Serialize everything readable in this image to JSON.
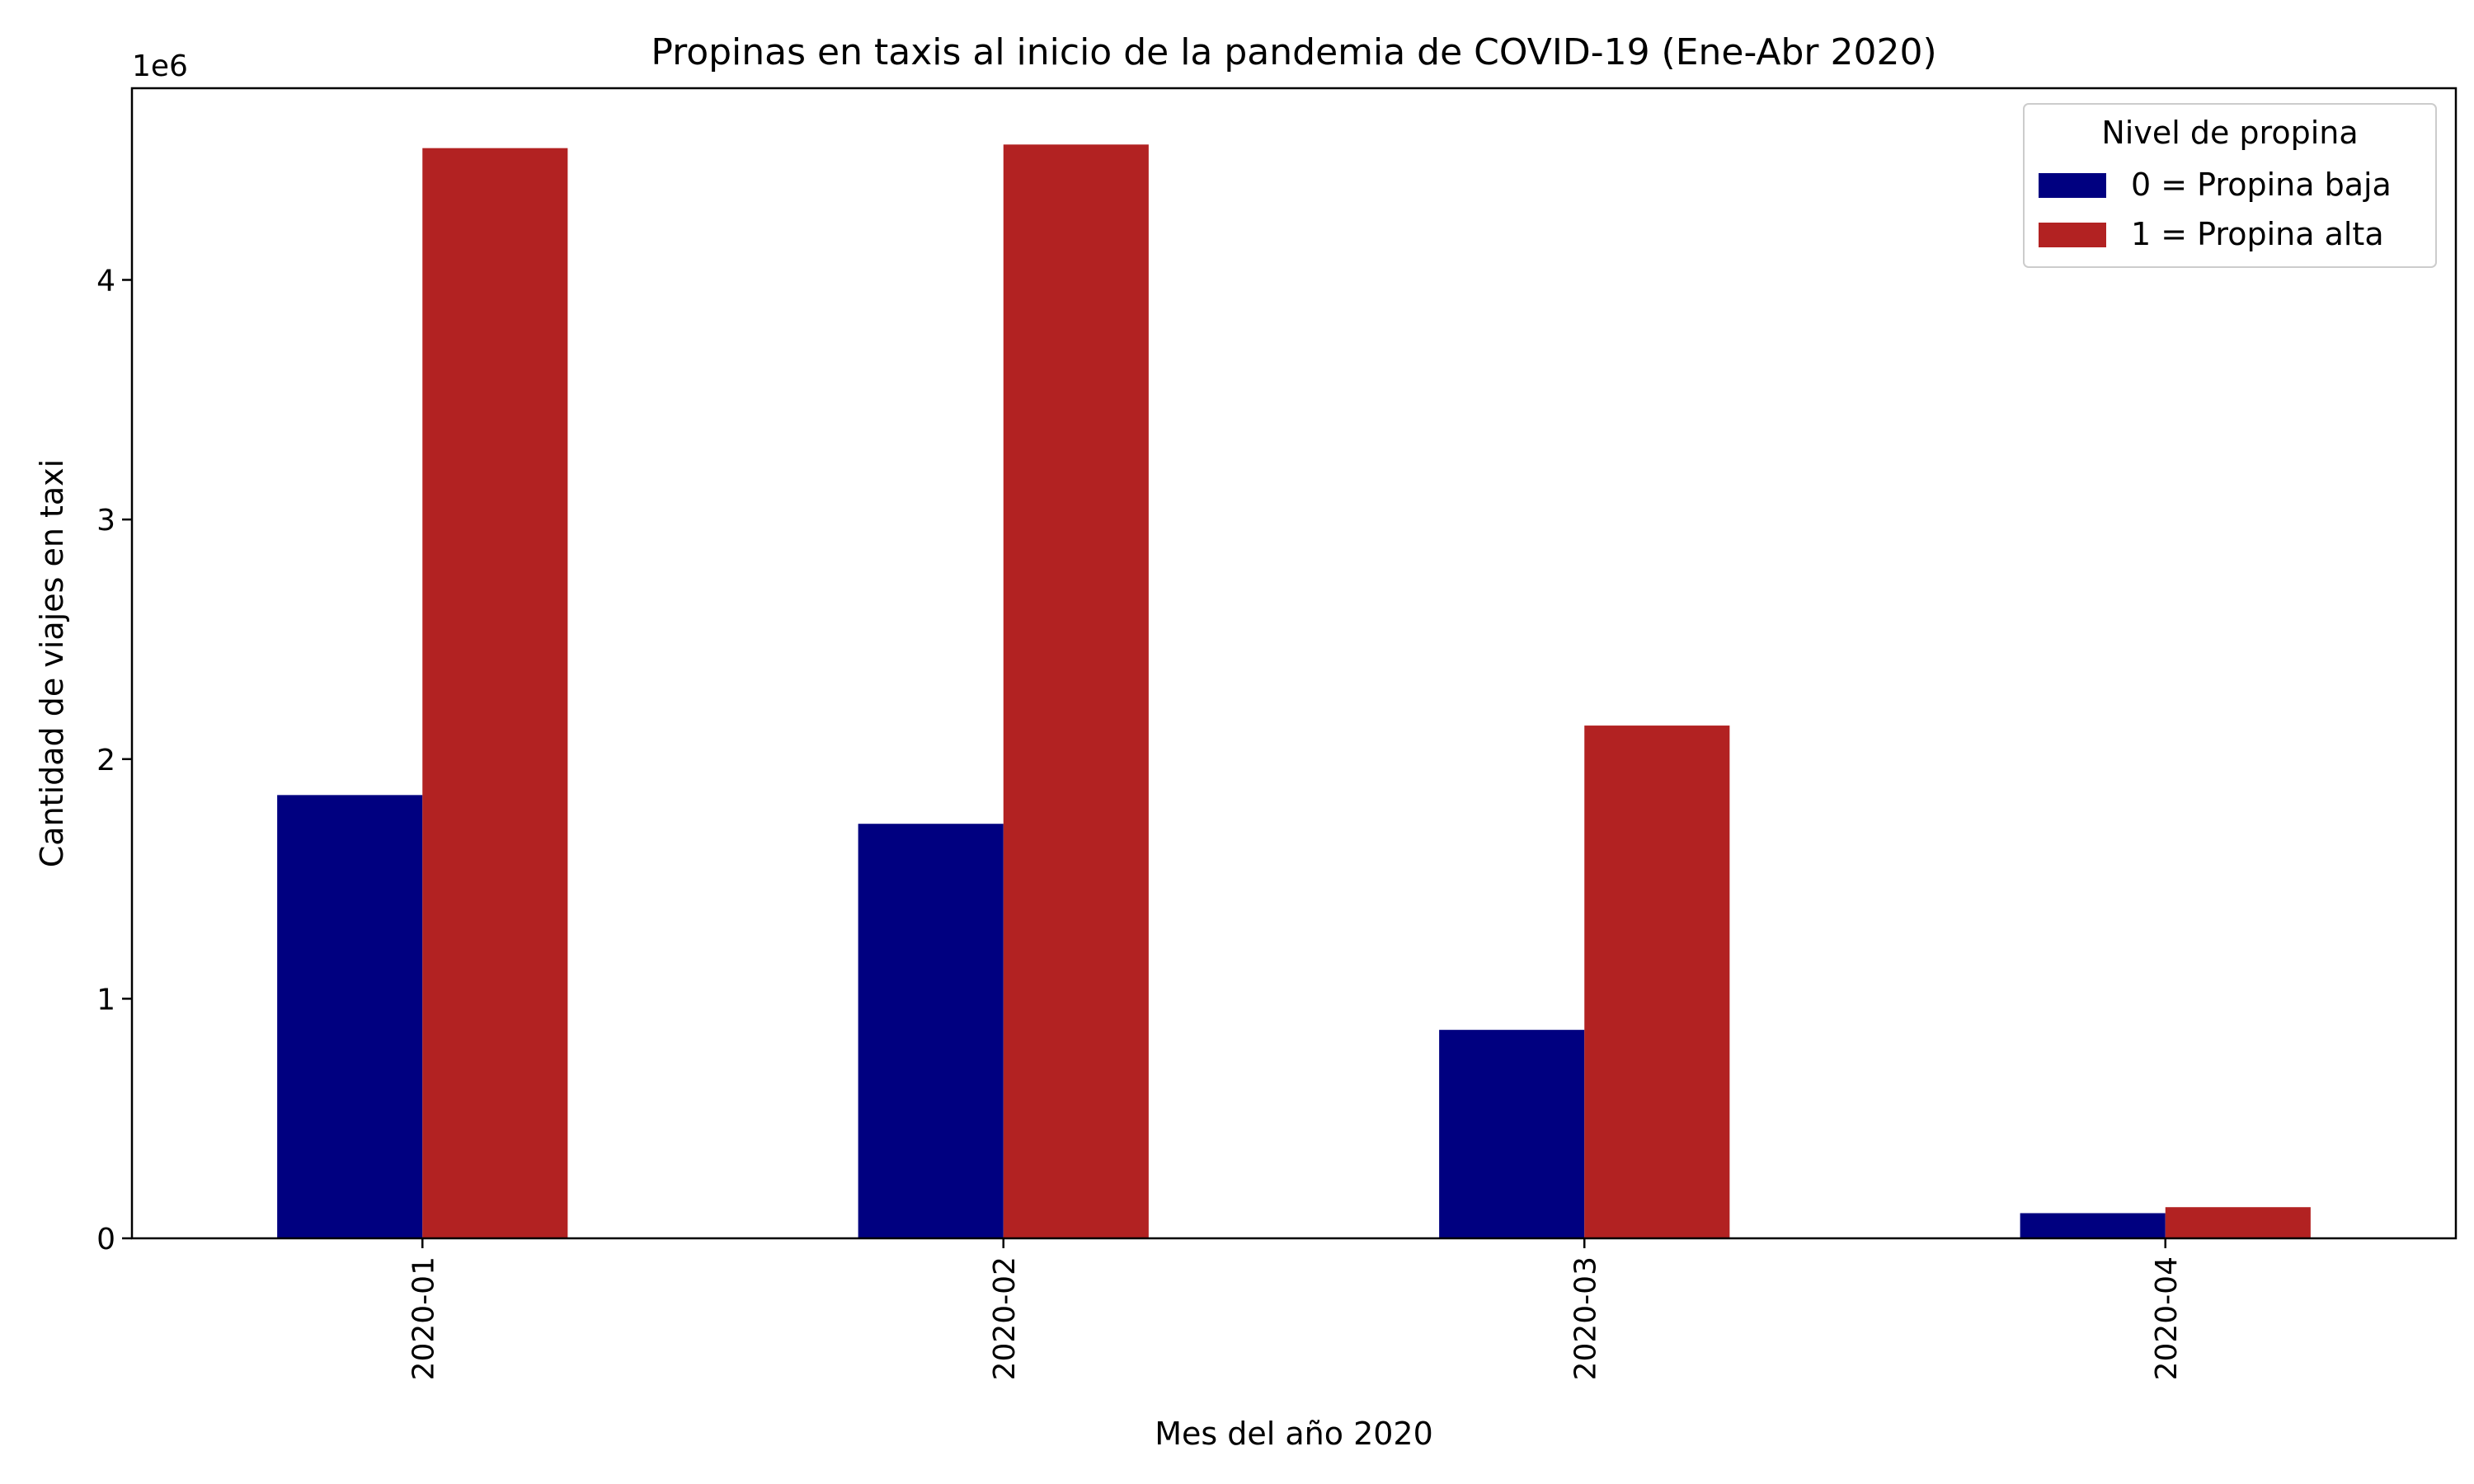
{
  "chart_data": {
    "type": "bar",
    "title": "Propinas en taxis al inicio de la pandemia de COVID-19 (Ene-Abr 2020)",
    "xlabel": "Mes del año 2020",
    "ylabel": "Cantidad de viajes en taxi",
    "y_offset_label": "1e6",
    "categories": [
      "2020-01",
      "2020-02",
      "2020-03",
      "2020-04"
    ],
    "series": [
      {
        "name": "0 = Propina baja",
        "color": "#000080",
        "values": [
          1850000,
          1730000,
          870000,
          105000
        ]
      },
      {
        "name": "1 = Propina alta",
        "color": "#b22222",
        "values": [
          4550000,
          4565000,
          2140000,
          130000
        ]
      }
    ],
    "ylim": [
      0,
      4800000
    ],
    "yticks": [
      0,
      1000000,
      2000000,
      3000000,
      4000000
    ],
    "ytick_labels": [
      "0",
      "1",
      "2",
      "3",
      "4"
    ],
    "grid": false,
    "legend": {
      "title": "Nivel de propina",
      "placement": "top-right"
    }
  }
}
